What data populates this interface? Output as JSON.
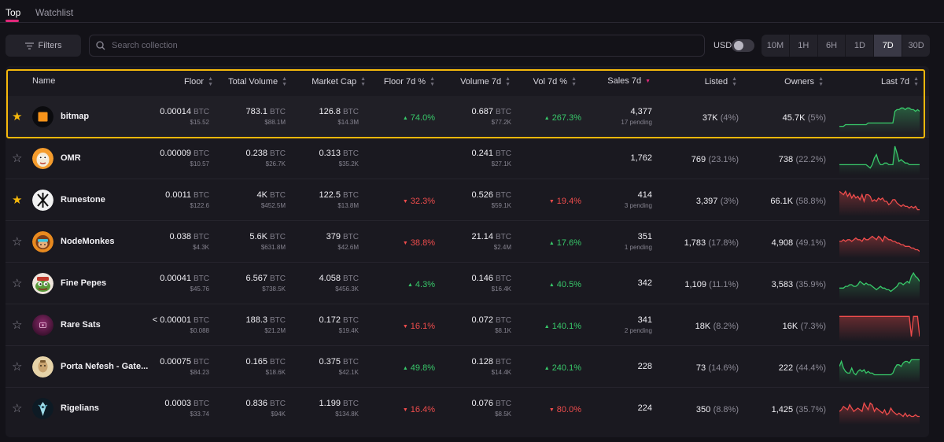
{
  "tabs": [
    "Top",
    "Watchlist"
  ],
  "toolbar": {
    "filters_label": "Filters",
    "search_placeholder": "Search collection",
    "currency_label": "USD",
    "ranges": [
      "10M",
      "1H",
      "6H",
      "1D",
      "7D",
      "30D"
    ],
    "active_range": "7D"
  },
  "columns": {
    "name": "Name",
    "floor": "Floor",
    "total_volume": "Total Volume",
    "market_cap": "Market Cap",
    "floor_pct": "Floor 7d %",
    "volume": "Volume 7d",
    "vol_pct": "Vol 7d %",
    "sales": "Sales 7d",
    "listed": "Listed",
    "owners": "Owners",
    "last": "Last 7d"
  },
  "colors": {
    "accent": "#e0287a",
    "up": "#38c96a",
    "down": "#ef4c4c",
    "star": "#f5b80b",
    "highlight": "#f5b80b"
  },
  "rows": [
    {
      "name": "bitmap",
      "favorite": true,
      "avatar": "orange-square",
      "floor": "0.00014",
      "floor_usd": "$15.52",
      "total_volume": "783.1",
      "total_volume_usd": "$88.1M",
      "market_cap": "126.8",
      "market_cap_usd": "$14.3M",
      "floor_pct": "74.0%",
      "floor_dir": "up",
      "volume": "0.687",
      "volume_usd": "$77.2K",
      "vol_pct": "267.3%",
      "vol_dir": "up",
      "sales": "4,377",
      "pending": "17 pending",
      "listed": "37K",
      "listed_pct": "(4%)",
      "owners": "45.7K",
      "owners_pct": "(5%)",
      "trend": "up",
      "spark": [
        3,
        3,
        3,
        4,
        4,
        4,
        4,
        4,
        4,
        4,
        4,
        4,
        4,
        4,
        5,
        5,
        5,
        5,
        5,
        5,
        5,
        5,
        5,
        5,
        5,
        5,
        5,
        12,
        13,
        13,
        14,
        14,
        13,
        14,
        14,
        13,
        13,
        12,
        13,
        12
      ]
    },
    {
      "name": "OMR",
      "favorite": false,
      "avatar": "omr-face",
      "floor": "0.00009",
      "floor_usd": "$10.57",
      "total_volume": "0.238",
      "total_volume_usd": "$26.7K",
      "market_cap": "0.313",
      "market_cap_usd": "$35.2K",
      "floor_pct": "",
      "floor_dir": "",
      "volume": "0.241",
      "volume_usd": "$27.1K",
      "vol_pct": "",
      "vol_dir": "",
      "sales": "1,762",
      "pending": "",
      "listed": "769",
      "listed_pct": "(23.1%)",
      "owners": "738",
      "owners_pct": "(22.2%)",
      "trend": "up",
      "spark": [
        5,
        5,
        5,
        5,
        5,
        5,
        5,
        5,
        5,
        5,
        5,
        5,
        5,
        5,
        4,
        3,
        5,
        9,
        11,
        7,
        5,
        5,
        6,
        6,
        5,
        5,
        5,
        16,
        12,
        7,
        8,
        7,
        6,
        6,
        5,
        5,
        5,
        5,
        5,
        5
      ]
    },
    {
      "name": "Runestone",
      "favorite": true,
      "avatar": "runestone-glyph",
      "floor": "0.0011",
      "floor_usd": "$122.6",
      "total_volume": "4K",
      "total_volume_usd": "$452.5M",
      "market_cap": "122.5",
      "market_cap_usd": "$13.8M",
      "floor_pct": "32.3%",
      "floor_dir": "down",
      "volume": "0.526",
      "volume_usd": "$59.1K",
      "vol_pct": "19.4%",
      "vol_dir": "down",
      "sales": "414",
      "pending": "3 pending",
      "listed": "3,397",
      "listed_pct": "(3%)",
      "owners": "66.1K",
      "owners_pct": "(58.8%)",
      "trend": "down",
      "spark": [
        14,
        13,
        12,
        14,
        11,
        13,
        10,
        12,
        10,
        11,
        9,
        12,
        8,
        12,
        12,
        11,
        8,
        9,
        8,
        10,
        9,
        10,
        8,
        8,
        6,
        7,
        9,
        9,
        7,
        6,
        5,
        6,
        5,
        5,
        4,
        5,
        4,
        5,
        3,
        3
      ]
    },
    {
      "name": "NodeMonkes",
      "favorite": false,
      "avatar": "monke-face",
      "floor": "0.038",
      "floor_usd": "$4.3K",
      "total_volume": "5.6K",
      "total_volume_usd": "$631.8M",
      "market_cap": "379",
      "market_cap_usd": "$42.6M",
      "floor_pct": "38.8%",
      "floor_dir": "down",
      "volume": "21.14",
      "volume_usd": "$2.4M",
      "vol_pct": "17.6%",
      "vol_dir": "up",
      "sales": "351",
      "pending": "1 pending",
      "listed": "1,783",
      "listed_pct": "(17.8%)",
      "owners": "4,908",
      "owners_pct": "(49.1%)",
      "trend": "down",
      "spark": [
        9,
        9,
        10,
        9,
        10,
        10,
        9,
        10,
        11,
        10,
        10,
        9,
        11,
        10,
        10,
        11,
        12,
        11,
        10,
        12,
        11,
        9,
        12,
        11,
        10,
        10,
        9,
        9,
        8,
        8,
        7,
        7,
        6,
        6,
        6,
        5,
        5,
        4,
        4,
        3
      ]
    },
    {
      "name": "Fine Pepes",
      "favorite": false,
      "avatar": "pepe-face",
      "floor": "0.00041",
      "floor_usd": "$45.76",
      "total_volume": "6.567",
      "total_volume_usd": "$738.5K",
      "market_cap": "4.058",
      "market_cap_usd": "$456.3K",
      "floor_pct": "4.3%",
      "floor_dir": "up",
      "volume": "0.146",
      "volume_usd": "$16.4K",
      "vol_pct": "40.5%",
      "vol_dir": "up",
      "sales": "342",
      "pending": "",
      "listed": "1,109",
      "listed_pct": "(11.1%)",
      "owners": "3,583",
      "owners_pct": "(35.9%)",
      "trend": "up",
      "spark": [
        6,
        6,
        6,
        7,
        7,
        8,
        8,
        7,
        7,
        8,
        10,
        9,
        8,
        9,
        8,
        8,
        7,
        6,
        5,
        6,
        7,
        6,
        6,
        5,
        5,
        4,
        5,
        6,
        7,
        9,
        9,
        8,
        9,
        10,
        9,
        13,
        15,
        13,
        12,
        10
      ]
    },
    {
      "name": "Rare Sats",
      "favorite": false,
      "avatar": "rare-sats-badge",
      "floor": "< 0.00001",
      "floor_usd": "$0.088",
      "total_volume": "188.3",
      "total_volume_usd": "$21.2M",
      "market_cap": "0.172",
      "market_cap_usd": "$19.4K",
      "floor_pct": "16.1%",
      "floor_dir": "down",
      "volume": "0.072",
      "volume_usd": "$8.1K",
      "vol_pct": "140.1%",
      "vol_dir": "up",
      "sales": "341",
      "pending": "2 pending",
      "listed": "18K",
      "listed_pct": "(8.2%)",
      "owners": "16K",
      "owners_pct": "(7.3%)",
      "trend": "down",
      "spark": [
        14,
        14,
        14,
        14,
        14,
        14,
        14,
        14,
        14,
        14,
        14,
        14,
        14,
        14,
        14,
        14,
        14,
        14,
        14,
        14,
        14,
        14,
        14,
        14,
        14,
        14,
        14,
        14,
        14,
        14,
        14,
        14,
        14,
        14,
        14,
        2,
        14,
        14,
        14,
        2
      ]
    },
    {
      "name": "Porta Nefesh - Gate...",
      "favorite": false,
      "avatar": "porta-nefesh",
      "floor": "0.00075",
      "floor_usd": "$84.23",
      "total_volume": "0.165",
      "total_volume_usd": "$18.6K",
      "market_cap": "0.375",
      "market_cap_usd": "$42.1K",
      "floor_pct": "49.8%",
      "floor_dir": "up",
      "volume": "0.128",
      "volume_usd": "$14.4K",
      "vol_pct": "240.1%",
      "vol_dir": "up",
      "sales": "228",
      "pending": "",
      "listed": "73",
      "listed_pct": "(14.6%)",
      "owners": "222",
      "owners_pct": "(44.4%)",
      "trend": "up",
      "spark": [
        9,
        12,
        8,
        6,
        5,
        5,
        8,
        5,
        4,
        6,
        7,
        6,
        7,
        5,
        6,
        5,
        5,
        4,
        4,
        4,
        4,
        4,
        4,
        4,
        4,
        4,
        5,
        8,
        10,
        10,
        9,
        11,
        12,
        12,
        11,
        13,
        13,
        13,
        13,
        13
      ]
    },
    {
      "name": "Rigelians",
      "favorite": false,
      "avatar": "rigelian-alien",
      "floor": "0.0003",
      "floor_usd": "$33.74",
      "total_volume": "0.836",
      "total_volume_usd": "$94K",
      "market_cap": "1.199",
      "market_cap_usd": "$134.8K",
      "floor_pct": "16.4%",
      "floor_dir": "down",
      "volume": "0.076",
      "volume_usd": "$8.5K",
      "vol_pct": "80.0%",
      "vol_dir": "down",
      "sales": "224",
      "pending": "",
      "listed": "350",
      "listed_pct": "(8.8%)",
      "owners": "1,425",
      "owners_pct": "(35.7%)",
      "trend": "down",
      "spark": [
        7,
        8,
        10,
        9,
        8,
        11,
        9,
        7,
        8,
        9,
        8,
        7,
        12,
        10,
        8,
        12,
        11,
        7,
        9,
        8,
        7,
        6,
        8,
        5,
        6,
        9,
        7,
        6,
        5,
        6,
        5,
        4,
        6,
        4,
        5,
        4,
        4,
        5,
        4,
        4
      ]
    }
  ]
}
